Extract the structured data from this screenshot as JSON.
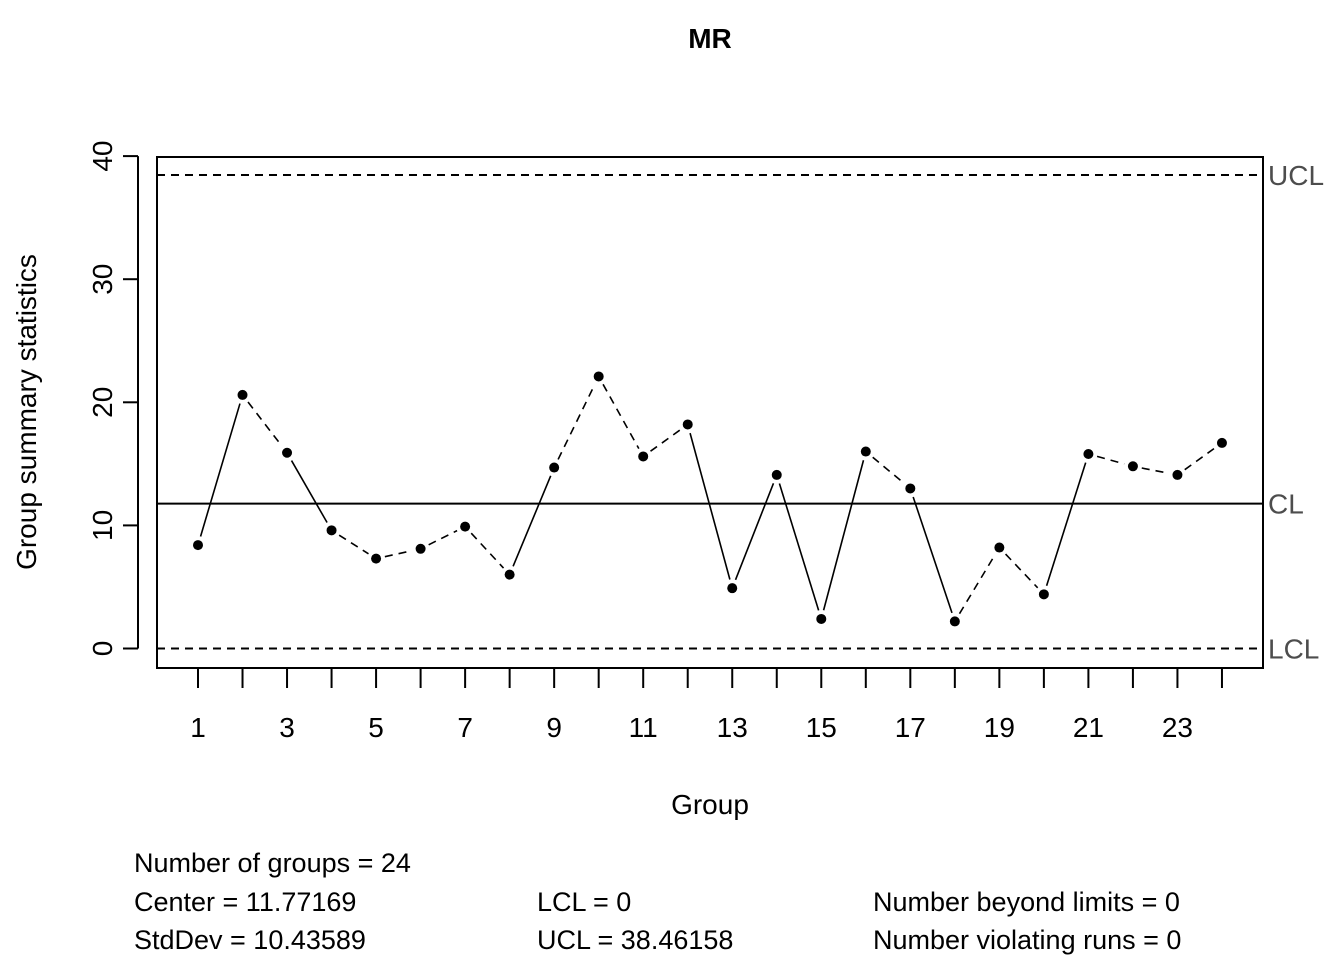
{
  "chart_data": {
    "type": "line",
    "title": "MR",
    "xlabel": "Group",
    "ylabel": "Group summary statistics",
    "x": [
      1,
      2,
      3,
      4,
      5,
      6,
      7,
      8,
      9,
      10,
      11,
      12,
      13,
      14,
      15,
      16,
      17,
      18,
      19,
      20,
      21,
      22,
      23,
      24
    ],
    "values": [
      8.4,
      20.6,
      15.9,
      9.6,
      7.3,
      8.1,
      9.9,
      6.0,
      14.7,
      22.1,
      15.6,
      18.2,
      4.9,
      14.1,
      2.4,
      16.0,
      13.0,
      2.2,
      8.2,
      4.4,
      15.8,
      14.8,
      14.1,
      16.7
    ],
    "ylim": [
      0,
      40
    ],
    "xlim": [
      0.05,
      24.95
    ],
    "yticks": [
      "0",
      "10",
      "20",
      "30",
      "40"
    ],
    "xticks_all": [
      1,
      2,
      3,
      4,
      5,
      6,
      7,
      8,
      9,
      10,
      11,
      12,
      13,
      14,
      15,
      16,
      17,
      18,
      19,
      20,
      21,
      22,
      23,
      24
    ],
    "xtick_labels": [
      "1",
      "3",
      "5",
      "7",
      "9",
      "11",
      "13",
      "15",
      "17",
      "19",
      "21",
      "23"
    ],
    "center": 11.77169,
    "lcl": 0,
    "ucl": 38.46158,
    "limit_labels": {
      "ucl": "UCL",
      "cl": "CL",
      "lcl": "LCL"
    },
    "grid": false,
    "legend": "none"
  },
  "stats": {
    "groups": "Number of groups = 24",
    "center": "Center = 11.77169",
    "stddev": "StdDev = 10.43589",
    "lcl": "LCL = 0",
    "ucl": "UCL = 38.46158",
    "beyond": "Number beyond limits = 0",
    "violating": "Number violating runs = 0"
  },
  "colors": {
    "foreground": "#000000",
    "limit_label": "#4d4d4d"
  }
}
